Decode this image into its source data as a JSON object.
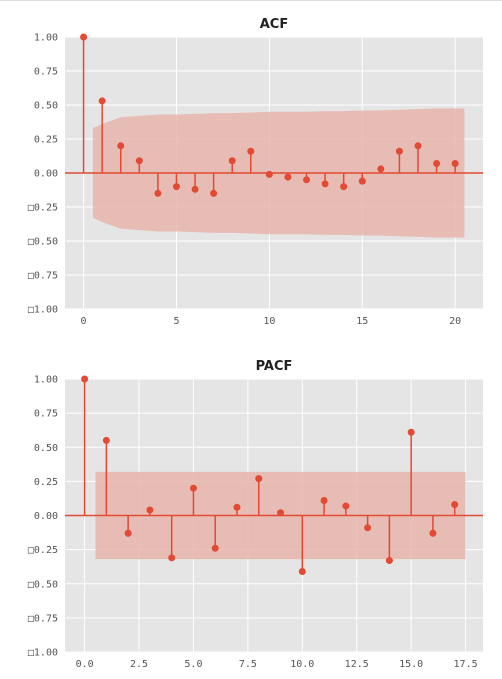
{
  "chart_data": [
    {
      "type": "stem",
      "title": "ACF",
      "xlabel": "",
      "ylabel": "",
      "xlim": [
        -1,
        21.5
      ],
      "ylim": [
        -1,
        1
      ],
      "xticks": [
        0,
        5,
        10,
        15,
        20
      ],
      "xtick_labels": [
        "0",
        "5",
        "10",
        "15",
        "20"
      ],
      "yticks": [
        1,
        0.75,
        0.5,
        0.25,
        0,
        -0.25,
        -0.5,
        -0.75,
        -1
      ],
      "ytick_labels": [
        "1.00",
        "0.75",
        "0.50",
        "0.25",
        "0.00",
        "□0.25",
        "□0.50",
        "□0.75",
        "□1.00"
      ],
      "grid": true,
      "x": [
        0,
        1,
        2,
        3,
        4,
        5,
        6,
        7,
        8,
        9,
        10,
        11,
        12,
        13,
        14,
        15,
        16,
        17,
        18,
        19,
        20
      ],
      "values": [
        1.0,
        0.53,
        0.2,
        0.09,
        -0.15,
        -0.1,
        -0.12,
        -0.15,
        0.09,
        0.16,
        -0.01,
        -0.03,
        -0.05,
        -0.08,
        -0.1,
        -0.06,
        0.03,
        0.16,
        0.2,
        0.07,
        0.07
      ],
      "confidence_band": {
        "x": [
          0.5,
          1,
          2,
          3,
          4,
          5,
          6,
          7,
          8,
          9,
          10,
          11,
          12,
          13,
          14,
          15,
          16,
          17,
          18,
          19,
          20.5
        ],
        "upper": [
          0.33,
          0.36,
          0.41,
          0.42,
          0.43,
          0.43,
          0.435,
          0.44,
          0.44,
          0.445,
          0.45,
          0.45,
          0.45,
          0.455,
          0.455,
          0.46,
          0.46,
          0.465,
          0.47,
          0.475,
          0.475
        ]
      },
      "colors": {
        "stem": "#E24A33",
        "band": "#E8B5AC",
        "background": "#E5E5E5"
      }
    },
    {
      "type": "stem",
      "title": "PACF",
      "xlabel": "",
      "ylabel": "",
      "xlim": [
        -0.9,
        18.3
      ],
      "ylim": [
        -1,
        1
      ],
      "xticks": [
        0,
        2.5,
        5,
        7.5,
        10,
        12.5,
        15,
        17.5
      ],
      "xtick_labels": [
        "0.0",
        "2.5",
        "5.0",
        "7.5",
        "10.0",
        "12.5",
        "15.0",
        "17.5"
      ],
      "yticks": [
        1,
        0.75,
        0.5,
        0.25,
        0,
        -0.25,
        -0.5,
        -0.75,
        -1
      ],
      "ytick_labels": [
        "1.00",
        "0.75",
        "0.50",
        "0.25",
        "0.00",
        "□0.25",
        "□0.50",
        "□0.75",
        "□1.00"
      ],
      "grid": true,
      "x": [
        0,
        1,
        2,
        3,
        4,
        5,
        6,
        7,
        8,
        9,
        10,
        11,
        12,
        13,
        14,
        15,
        16,
        17
      ],
      "values": [
        1.0,
        0.55,
        -0.13,
        0.04,
        -0.31,
        0.2,
        -0.24,
        0.06,
        0.27,
        0.02,
        -0.41,
        0.11,
        0.07,
        -0.09,
        -0.33,
        0.61,
        -0.13,
        0.08
      ],
      "confidence_band": {
        "x": [
          0.5,
          17.5
        ],
        "upper": [
          0.32,
          0.32
        ]
      },
      "colors": {
        "stem": "#E24A33",
        "band": "#E8B5AC",
        "background": "#E5E5E5"
      }
    }
  ]
}
